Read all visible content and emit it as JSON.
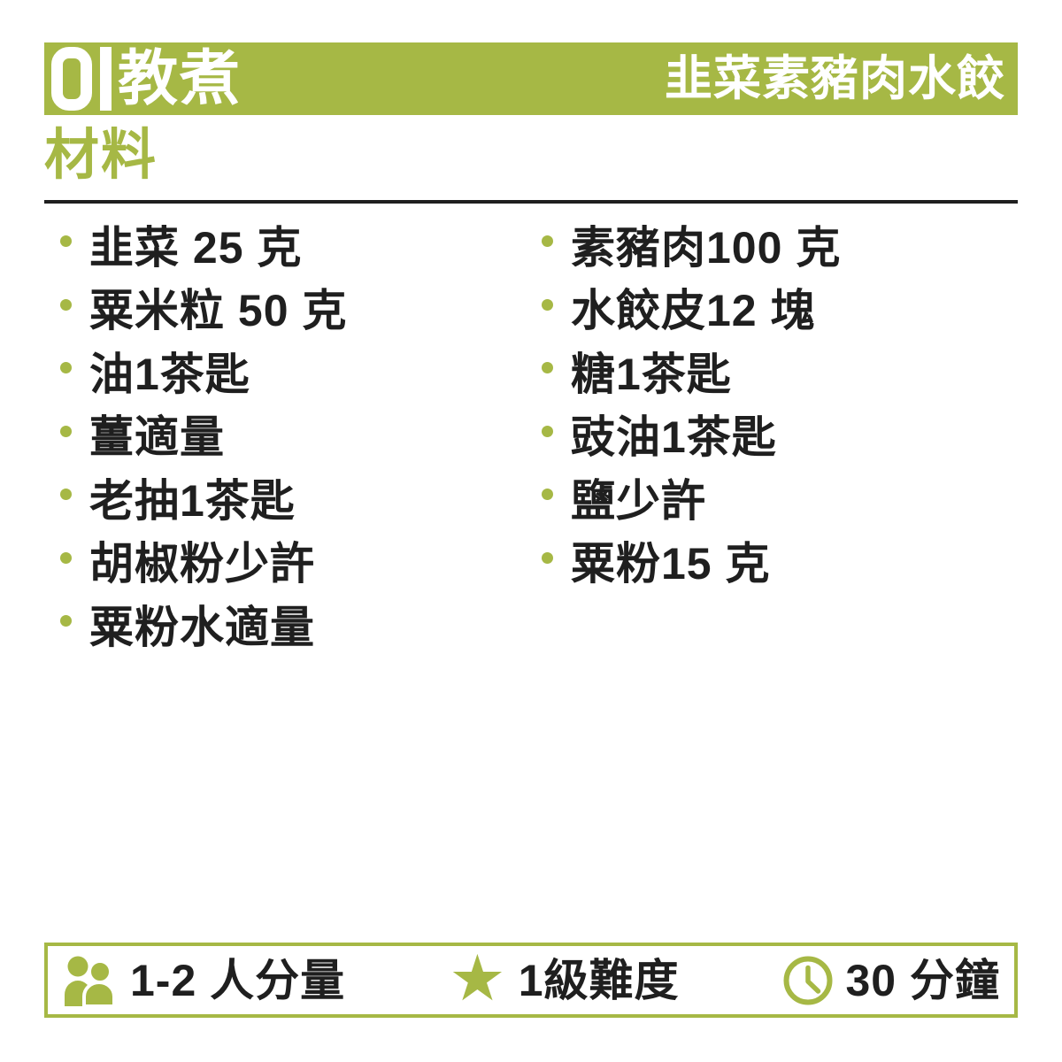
{
  "header": {
    "brand_numeral": "01",
    "brand_cjk": "教煮",
    "recipe_title": "韭菜素豬肉水餃"
  },
  "section": {
    "title": "材料"
  },
  "ingredients": {
    "left": [
      "韭菜 25 克",
      "粟米粒 50 克",
      "油1茶匙",
      "薑適量",
      "老抽1茶匙",
      "胡椒粉少許",
      "粟粉水適量"
    ],
    "right": [
      "素豬肉100 克",
      "水餃皮12 塊",
      "糖1茶匙",
      "豉油1茶匙",
      "鹽少許",
      "粟粉15 克"
    ]
  },
  "meta": {
    "servings": "1-2 人分量",
    "difficulty": "1級難度",
    "time": "30 分鐘",
    "star_glyph": "★"
  },
  "colors": {
    "accent_green": "#a6b845",
    "text_dark": "#1f1f1f"
  }
}
